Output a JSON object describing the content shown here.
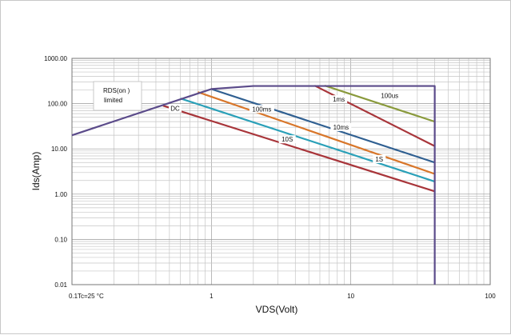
{
  "chart_data": {
    "type": "line",
    "xscale": "log",
    "yscale": "log",
    "xlim": [
      0.1,
      100
    ],
    "ylim": [
      0.01,
      1000
    ],
    "grid": true,
    "xlabel": "VDS(Volt)",
    "ylabel": "Ids(Amp)",
    "xticks": [
      "0.1",
      "1",
      "10",
      "100"
    ],
    "yticks": [
      "0.01",
      "0.10",
      "1.00",
      "10.00",
      "100.00",
      "1000.00"
    ],
    "annotations": {
      "rds_line1": "RDS(on )",
      "rds_line2": "limited",
      "condition": "Tc=25 °C"
    },
    "series": [
      {
        "name": "100us",
        "color": "#8a9a3c",
        "points": [
          [
            6.5,
            250
          ],
          [
            40,
            40
          ]
        ]
      },
      {
        "name": "1ms",
        "color": "#a8353a",
        "points": [
          [
            5.5,
            250
          ],
          [
            40,
            11.5
          ]
        ]
      },
      {
        "name": "10ms",
        "color": "#2f5f91",
        "points": [
          [
            1.0,
            210
          ],
          [
            40,
            5.0
          ]
        ]
      },
      {
        "name": "100ms",
        "color": "#d8762a",
        "points": [
          [
            0.8,
            180
          ],
          [
            40,
            2.8
          ]
        ]
      },
      {
        "name": "1S",
        "color": "#2aa0b8",
        "points": [
          [
            0.6,
            130
          ],
          [
            40,
            1.9
          ]
        ]
      },
      {
        "name": "DC",
        "color": "#a8353a",
        "points": [
          [
            0.45,
            90
          ],
          [
            40,
            1.15
          ]
        ]
      },
      {
        "name": "",
        "color": "#5b4b8a",
        "points": [
          [
            0.1,
            20
          ],
          [
            1.0,
            210
          ],
          [
            2.0,
            245
          ],
          [
            40,
            245
          ],
          [
            40,
            0.01
          ]
        ]
      }
    ],
    "labels": [
      {
        "text": "100us",
        "x": 19,
        "y": 140
      },
      {
        "text": "1ms",
        "x": 8.2,
        "y": 115
      },
      {
        "text": "10ms",
        "x": 8.5,
        "y": 28
      },
      {
        "text": "100ms",
        "x": 2.3,
        "y": 70
      },
      {
        "text": "10S",
        "x": 3.5,
        "y": 15
      },
      {
        "text": "1S",
        "x": 16,
        "y": 5.5
      },
      {
        "text": "DC",
        "x": 0.55,
        "y": 73
      }
    ]
  }
}
